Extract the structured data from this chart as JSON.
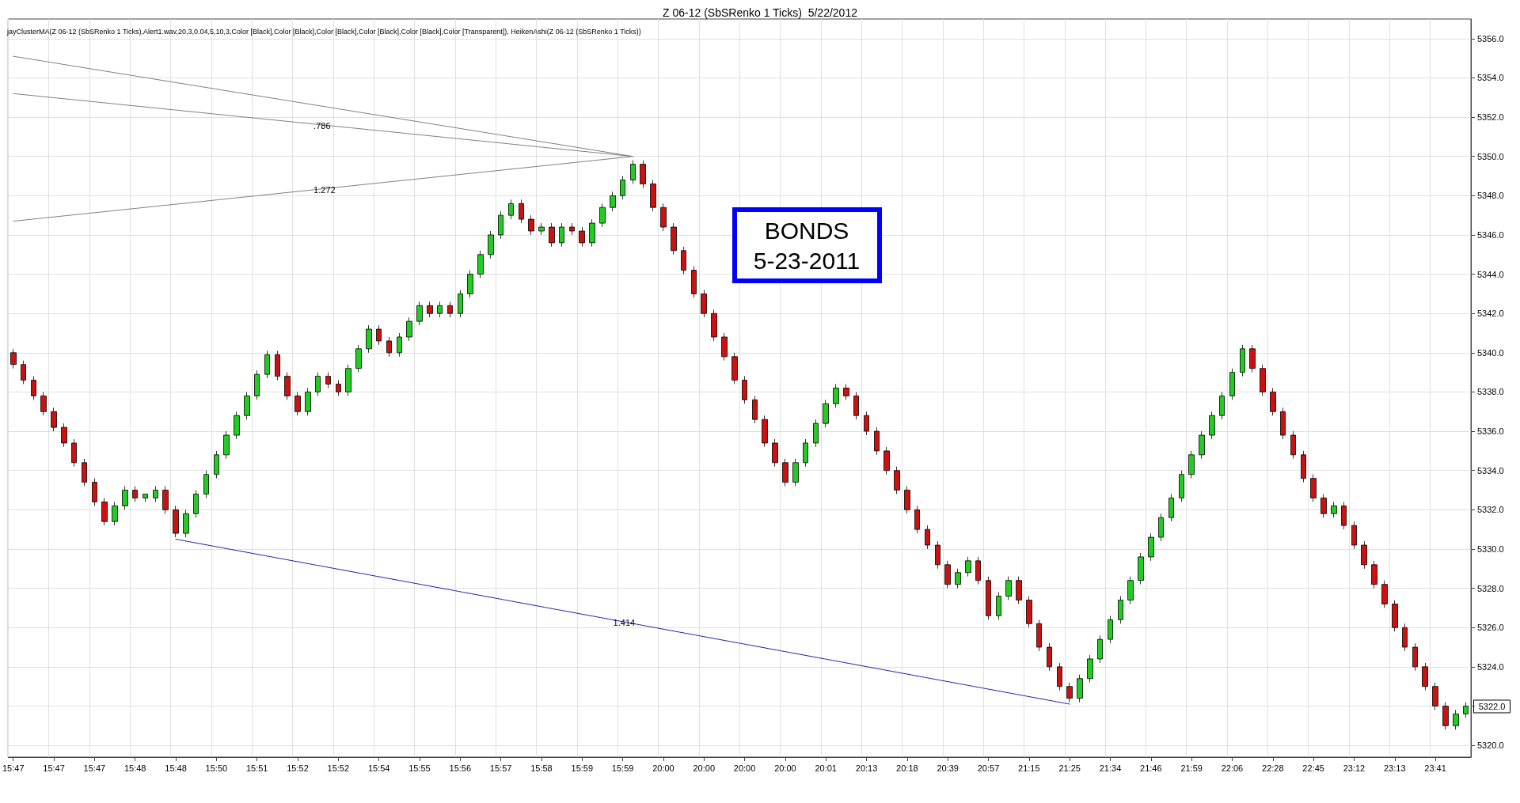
{
  "chart_data": {
    "type": "candlestick",
    "title": "Z 06-12 (SbSRenko 1 Ticks)  5/22/2012",
    "subtitle": "jayClusterMA(Z 06-12 (SbSRenko 1 Ticks),Alert1.wav,20,3,0.04,5,10,3,Color [Black],Color [Black],Color [Black],Color [Black],Color [Black],Color [Transparent]), HeikenAshi(Z 06-12 (SbSRenko 1 Ticks))",
    "annotations": [
      "BONDS\n5-23-2011",
      "5322.0"
    ],
    "categories": [
      "15:47",
      null,
      null,
      null,
      "15:47",
      null,
      null,
      null,
      "15:47",
      null,
      null,
      null,
      "15:48",
      null,
      null,
      null,
      "15:48",
      null,
      null,
      null,
      "15:50",
      null,
      null,
      null,
      "15:51",
      null,
      null,
      null,
      "15:52",
      null,
      null,
      null,
      "15:52",
      null,
      null,
      null,
      "15:54",
      null,
      null,
      null,
      "15:55",
      null,
      null,
      null,
      "15:56",
      null,
      null,
      null,
      "15:57",
      null,
      null,
      null,
      "15:58",
      null,
      null,
      null,
      "15:59",
      null,
      null,
      null,
      "15:59",
      null,
      null,
      null,
      "20:00",
      null,
      null,
      null,
      "20:00",
      null,
      null,
      null,
      "20:00",
      null,
      null,
      null,
      "20:00",
      null,
      null,
      null,
      "20:01",
      null,
      null,
      null,
      "20:13",
      null,
      null,
      null,
      "20:18",
      null,
      null,
      null,
      "20:39",
      null,
      null,
      null,
      "20:57",
      null,
      null,
      null,
      "21:15",
      null,
      null,
      null,
      "21:25",
      null,
      null,
      null,
      "21:34",
      null,
      null,
      null,
      "21:46",
      null,
      null,
      null,
      "21:59",
      null,
      null,
      null,
      "22:06",
      null,
      null,
      null,
      "22:28",
      null,
      null,
      null,
      "22:45",
      null,
      null,
      null,
      "23:12",
      null,
      null,
      null,
      "23:13",
      null,
      null,
      null,
      "23:41",
      null,
      null,
      null
    ],
    "ylim": [
      5319.4,
      5357
    ],
    "yticks": [
      {
        "value": 5320,
        "label": "5320.0"
      },
      {
        "value": 5322,
        "label": null
      },
      {
        "value": 5324,
        "label": "5324.0"
      },
      {
        "value": 5326,
        "label": "5326.0"
      },
      {
        "value": 5328,
        "label": "5328.0"
      },
      {
        "value": 5330,
        "label": "5330.0"
      },
      {
        "value": 5332,
        "label": "5332.0"
      },
      {
        "value": 5334,
        "label": "5334.0"
      },
      {
        "value": 5336,
        "label": "5336.0"
      },
      {
        "value": 5338,
        "label": "5338.0"
      },
      {
        "value": 5340,
        "label": "5340.0"
      },
      {
        "value": 5342,
        "label": "5342.0"
      },
      {
        "value": 5344,
        "label": "5344.0"
      },
      {
        "value": 5346,
        "label": "5346.0"
      },
      {
        "value": 5348,
        "label": "5348.0"
      },
      {
        "value": 5350,
        "label": "5350.0"
      },
      {
        "value": 5352,
        "label": "5352.0"
      },
      {
        "value": 5354,
        "label": "5354.0"
      },
      {
        "value": 5356,
        "label": "5356.0"
      }
    ],
    "grid": true,
    "marker": "none",
    "series": [
      {
        "ohlc": [
          [
            5340.0,
            5340.2,
            5339.2,
            5339.4
          ],
          [
            5339.4,
            5339.6,
            5338.4,
            5338.6
          ],
          [
            5338.6,
            5338.8,
            5337.6,
            5337.8
          ],
          [
            5337.8,
            5338.0,
            5336.8,
            5337.0
          ],
          [
            5337.0,
            5337.2,
            5336.0,
            5336.2
          ],
          [
            5336.2,
            5336.4,
            5335.2,
            5335.4
          ],
          [
            5335.4,
            5335.6,
            5334.2,
            5334.4
          ],
          [
            5334.4,
            5334.6,
            5333.2,
            5333.4
          ],
          [
            5333.4,
            5333.6,
            5332.2,
            5332.4
          ],
          [
            5332.4,
            5332.6,
            5331.2,
            5331.4
          ],
          [
            5331.4,
            5332.4,
            5331.2,
            5332.2
          ],
          [
            5332.2,
            5333.2,
            5332.0,
            5333.0
          ],
          [
            5333.0,
            5333.2,
            5332.4,
            5332.6
          ],
          [
            5332.6,
            5332.8,
            5332.4,
            5332.8
          ],
          [
            5332.6,
            5333.2,
            5332.4,
            5333.0
          ],
          [
            5333.0,
            5333.2,
            5331.8,
            5332.0
          ],
          [
            5332.0,
            5332.2,
            5330.6,
            5330.8
          ],
          [
            5330.8,
            5332.0,
            5330.6,
            5331.8
          ],
          [
            5331.8,
            5333.0,
            5331.6,
            5332.8
          ],
          [
            5332.8,
            5334.0,
            5332.6,
            5333.8
          ],
          [
            5333.8,
            5335.0,
            5333.6,
            5334.8
          ],
          [
            5334.8,
            5336.0,
            5334.6,
            5335.8
          ],
          [
            5335.8,
            5337.0,
            5335.6,
            5336.8
          ],
          [
            5336.8,
            5338.0,
            5336.6,
            5337.8
          ],
          [
            5337.8,
            5339.1,
            5337.6,
            5338.9
          ],
          [
            5338.9,
            5340.1,
            5338.7,
            5339.9
          ],
          [
            5339.9,
            5340.1,
            5338.6,
            5338.8
          ],
          [
            5338.8,
            5339.0,
            5337.6,
            5337.8
          ],
          [
            5337.8,
            5338.0,
            5336.8,
            5337.0
          ],
          [
            5337.0,
            5338.2,
            5336.8,
            5338.0
          ],
          [
            5338.0,
            5339.0,
            5337.8,
            5338.8
          ],
          [
            5338.8,
            5339.0,
            5338.2,
            5338.4
          ],
          [
            5338.4,
            5338.6,
            5337.8,
            5338.0
          ],
          [
            5338.0,
            5339.4,
            5337.8,
            5339.2
          ],
          [
            5339.2,
            5340.4,
            5339.0,
            5340.2
          ],
          [
            5340.2,
            5341.4,
            5340.0,
            5341.2
          ],
          [
            5341.2,
            5341.4,
            5340.4,
            5340.6
          ],
          [
            5340.6,
            5340.8,
            5339.8,
            5340.0
          ],
          [
            5340.0,
            5341.0,
            5339.8,
            5340.8
          ],
          [
            5340.8,
            5341.8,
            5340.6,
            5341.6
          ],
          [
            5341.6,
            5342.6,
            5341.4,
            5342.4
          ],
          [
            5342.4,
            5342.6,
            5341.8,
            5342.0
          ],
          [
            5342.0,
            5342.6,
            5341.8,
            5342.4
          ],
          [
            5342.4,
            5342.6,
            5341.8,
            5342.0
          ],
          [
            5342.0,
            5343.2,
            5341.8,
            5343.0
          ],
          [
            5343.0,
            5344.2,
            5342.8,
            5344.0
          ],
          [
            5344.0,
            5345.2,
            5343.8,
            5345.0
          ],
          [
            5345.0,
            5346.2,
            5344.8,
            5346.0
          ],
          [
            5346.0,
            5347.2,
            5345.8,
            5347.0
          ],
          [
            5347.0,
            5347.8,
            5346.8,
            5347.6
          ],
          [
            5347.6,
            5347.8,
            5346.6,
            5346.8
          ],
          [
            5346.8,
            5347.0,
            5346.0,
            5346.2
          ],
          [
            5346.2,
            5346.6,
            5346.0,
            5346.4
          ],
          [
            5346.4,
            5346.6,
            5345.4,
            5345.6
          ],
          [
            5345.6,
            5346.6,
            5345.4,
            5346.4
          ],
          [
            5346.4,
            5346.6,
            5346.0,
            5346.2
          ],
          [
            5346.2,
            5346.4,
            5345.4,
            5345.6
          ],
          [
            5345.6,
            5346.8,
            5345.4,
            5346.6
          ],
          [
            5346.6,
            5347.6,
            5346.4,
            5347.4
          ],
          [
            5347.4,
            5348.2,
            5347.2,
            5348.0
          ],
          [
            5348.0,
            5349.0,
            5347.8,
            5348.8
          ],
          [
            5348.8,
            5349.8,
            5348.6,
            5349.6
          ],
          [
            5349.6,
            5349.8,
            5348.4,
            5348.6
          ],
          [
            5348.6,
            5348.8,
            5347.2,
            5347.4
          ],
          [
            5347.4,
            5347.6,
            5346.2,
            5346.4
          ],
          [
            5346.4,
            5346.6,
            5345.0,
            5345.2
          ],
          [
            5345.2,
            5345.4,
            5344.0,
            5344.2
          ],
          [
            5344.2,
            5344.4,
            5342.8,
            5343.0
          ],
          [
            5343.0,
            5343.2,
            5341.8,
            5342.0
          ],
          [
            5342.0,
            5342.2,
            5340.6,
            5340.8
          ],
          [
            5340.8,
            5341.0,
            5339.6,
            5339.8
          ],
          [
            5339.8,
            5340.0,
            5338.4,
            5338.6
          ],
          [
            5338.6,
            5338.8,
            5337.4,
            5337.6
          ],
          [
            5337.6,
            5337.8,
            5336.4,
            5336.6
          ],
          [
            5336.6,
            5336.8,
            5335.2,
            5335.4
          ],
          [
            5335.4,
            5335.6,
            5334.2,
            5334.4
          ],
          [
            5334.4,
            5334.6,
            5333.2,
            5333.4
          ],
          [
            5333.4,
            5334.6,
            5333.2,
            5334.4
          ],
          [
            5334.4,
            5335.6,
            5334.2,
            5335.4
          ],
          [
            5335.4,
            5336.6,
            5335.2,
            5336.4
          ],
          [
            5336.4,
            5337.6,
            5336.2,
            5337.4
          ],
          [
            5337.4,
            5338.4,
            5337.2,
            5338.2
          ],
          [
            5338.2,
            5338.4,
            5337.6,
            5337.8
          ],
          [
            5337.8,
            5338.0,
            5336.6,
            5336.8
          ],
          [
            5336.8,
            5337.0,
            5335.8,
            5336.0
          ],
          [
            5336.0,
            5336.2,
            5334.8,
            5335.0
          ],
          [
            5335.0,
            5335.2,
            5333.8,
            5334.0
          ],
          [
            5334.0,
            5334.2,
            5332.8,
            5333.0
          ],
          [
            5333.0,
            5333.2,
            5331.8,
            5332.0
          ],
          [
            5332.0,
            5332.2,
            5330.8,
            5331.0
          ],
          [
            5331.0,
            5331.2,
            5330.0,
            5330.2
          ],
          [
            5330.2,
            5330.4,
            5329.0,
            5329.2
          ],
          [
            5329.2,
            5329.4,
            5328.0,
            5328.2
          ],
          [
            5328.2,
            5329.0,
            5328.0,
            5328.8
          ],
          [
            5328.8,
            5329.6,
            5328.6,
            5329.4
          ],
          [
            5329.4,
            5329.6,
            5328.2,
            5328.4
          ],
          [
            5328.4,
            5328.6,
            5326.4,
            5326.6
          ],
          [
            5326.6,
            5327.8,
            5326.4,
            5327.6
          ],
          [
            5327.6,
            5328.6,
            5327.4,
            5328.4
          ],
          [
            5328.4,
            5328.6,
            5327.2,
            5327.4
          ],
          [
            5327.4,
            5327.6,
            5326.0,
            5326.2
          ],
          [
            5326.2,
            5326.4,
            5324.8,
            5325.0
          ],
          [
            5325.0,
            5325.2,
            5323.8,
            5324.0
          ],
          [
            5324.0,
            5324.2,
            5322.8,
            5323.0
          ],
          [
            5323.0,
            5323.2,
            5322.2,
            5322.4
          ],
          [
            5322.4,
            5323.6,
            5322.2,
            5323.4
          ],
          [
            5323.4,
            5324.6,
            5323.2,
            5324.4
          ],
          [
            5324.4,
            5325.6,
            5324.2,
            5325.4
          ],
          [
            5325.4,
            5326.6,
            5325.2,
            5326.4
          ],
          [
            5326.4,
            5327.6,
            5326.2,
            5327.4
          ],
          [
            5327.4,
            5328.6,
            5327.2,
            5328.4
          ],
          [
            5328.4,
            5329.8,
            5328.2,
            5329.6
          ],
          [
            5329.6,
            5330.8,
            5329.4,
            5330.6
          ],
          [
            5330.6,
            5331.8,
            5330.4,
            5331.6
          ],
          [
            5331.6,
            5332.8,
            5331.4,
            5332.6
          ],
          [
            5332.6,
            5334.0,
            5332.4,
            5333.8
          ],
          [
            5333.8,
            5335.0,
            5333.6,
            5334.8
          ],
          [
            5334.8,
            5336.0,
            5334.6,
            5335.8
          ],
          [
            5335.8,
            5337.0,
            5335.6,
            5336.8
          ],
          [
            5336.8,
            5338.0,
            5336.6,
            5337.8
          ],
          [
            5337.8,
            5339.2,
            5337.6,
            5339.0
          ],
          [
            5339.0,
            5340.4,
            5338.8,
            5340.2
          ],
          [
            5340.2,
            5340.4,
            5339.0,
            5339.2
          ],
          [
            5339.2,
            5339.4,
            5337.8,
            5338.0
          ],
          [
            5338.0,
            5338.2,
            5336.8,
            5337.0
          ],
          [
            5337.0,
            5337.2,
            5335.6,
            5335.8
          ],
          [
            5335.8,
            5336.0,
            5334.6,
            5334.8
          ],
          [
            5334.8,
            5335.0,
            5333.4,
            5333.6
          ],
          [
            5333.6,
            5333.8,
            5332.4,
            5332.6
          ],
          [
            5332.6,
            5332.8,
            5331.6,
            5331.8
          ],
          [
            5331.8,
            5332.4,
            5331.6,
            5332.2
          ],
          [
            5332.2,
            5332.4,
            5331.0,
            5331.2
          ],
          [
            5331.2,
            5331.4,
            5330.0,
            5330.2
          ],
          [
            5330.2,
            5330.4,
            5329.0,
            5329.2
          ],
          [
            5329.2,
            5329.4,
            5328.0,
            5328.2
          ],
          [
            5328.2,
            5328.4,
            5327.0,
            5327.2
          ],
          [
            5327.2,
            5327.4,
            5325.8,
            5326.0
          ],
          [
            5326.0,
            5326.2,
            5324.8,
            5325.0
          ],
          [
            5325.0,
            5325.2,
            5323.8,
            5324.0
          ],
          [
            5324.0,
            5324.2,
            5322.8,
            5323.0
          ],
          [
            5323.0,
            5323.2,
            5321.8,
            5322.0
          ],
          [
            5322.0,
            5322.2,
            5320.8,
            5321.0
          ],
          [
            5321.0,
            5321.8,
            5320.8,
            5321.6
          ],
          [
            5321.6,
            5322.2,
            5321.4,
            5322.0
          ]
        ]
      },
      {
        "type": "line",
        "color": "#808080",
        "line_style": "solid",
        "values": [
          5355.1,
          null,
          null,
          null,
          null,
          null,
          null,
          null,
          null,
          null,
          null,
          null,
          null,
          null,
          null,
          null,
          null,
          null,
          null,
          null,
          null,
          null,
          null,
          null,
          null,
          null,
          null,
          null,
          null,
          null,
          null,
          null,
          null,
          null,
          null,
          null,
          null,
          null,
          null,
          null,
          null,
          null,
          null,
          null,
          null,
          null,
          null,
          null,
          null,
          null,
          null,
          null,
          null,
          null,
          null,
          null,
          null,
          null,
          null,
          null,
          null,
          5350.0,
          null,
          null,
          null,
          null,
          null,
          null,
          null,
          null,
          null,
          null,
          null,
          null,
          null,
          null,
          null,
          null,
          null,
          null,
          null,
          null,
          null,
          null,
          null,
          null,
          null,
          null,
          null,
          null,
          null,
          null,
          null,
          null,
          null,
          null,
          null,
          null,
          null,
          null,
          null,
          null,
          null,
          null,
          null,
          null,
          null,
          null,
          null,
          null,
          null,
          null,
          null,
          null,
          null,
          null,
          null,
          null,
          null,
          null,
          null,
          null,
          null,
          null,
          null,
          null,
          null,
          null,
          null,
          null,
          null,
          null,
          null,
          null,
          null,
          null,
          null,
          null,
          null,
          null,
          null,
          null,
          null,
          null
        ]
      },
      {
        "type": "line",
        "name": ".786",
        "color": "#808080",
        "line_style": "solid",
        "values": [
          5353.2,
          null,
          null,
          null,
          null,
          null,
          null,
          null,
          null,
          null,
          null,
          null,
          null,
          null,
          null,
          null,
          null,
          null,
          null,
          null,
          null,
          null,
          null,
          null,
          null,
          null,
          null,
          null,
          null,
          null,
          null,
          null,
          null,
          null,
          null,
          null,
          null,
          null,
          null,
          null,
          null,
          null,
          null,
          null,
          null,
          null,
          null,
          null,
          null,
          null,
          null,
          null,
          null,
          null,
          null,
          null,
          null,
          null,
          null,
          null,
          null,
          5350.0,
          null,
          null,
          null,
          null,
          null,
          null,
          null,
          null,
          null,
          null,
          null,
          null,
          null,
          null,
          null,
          null,
          null,
          null,
          null,
          null,
          null,
          null,
          null,
          null,
          null,
          null,
          null,
          null,
          null,
          null,
          null,
          null,
          null,
          null,
          null,
          null,
          null,
          null,
          null,
          null,
          null,
          null,
          null,
          null,
          null,
          null,
          null,
          null,
          null,
          null,
          null,
          null,
          null,
          null,
          null,
          null,
          null,
          null,
          null,
          null,
          null,
          null,
          null,
          null,
          null,
          null,
          null,
          null,
          null,
          null,
          null,
          null,
          null,
          null,
          null,
          null,
          null,
          null,
          null,
          null,
          null,
          null
        ]
      },
      {
        "type": "line",
        "name": "1.272",
        "color": "#808080",
        "line_style": "solid",
        "values": [
          5346.7,
          null,
          null,
          null,
          null,
          null,
          null,
          null,
          null,
          null,
          null,
          null,
          null,
          null,
          null,
          null,
          null,
          null,
          null,
          null,
          null,
          null,
          null,
          null,
          null,
          null,
          null,
          null,
          null,
          null,
          null,
          null,
          null,
          null,
          null,
          null,
          null,
          null,
          null,
          null,
          null,
          null,
          null,
          null,
          null,
          null,
          null,
          null,
          null,
          null,
          null,
          null,
          null,
          null,
          null,
          null,
          null,
          null,
          null,
          null,
          null,
          5350.0,
          null,
          null,
          null,
          null,
          null,
          null,
          null,
          null,
          null,
          null,
          null,
          null,
          null,
          null,
          null,
          null,
          null,
          null,
          null,
          null,
          null,
          null,
          null,
          null,
          null,
          null,
          null,
          null,
          null,
          null,
          null,
          null,
          null,
          null,
          null,
          null,
          null,
          null,
          null,
          null,
          null,
          null,
          null,
          null,
          null,
          null,
          null,
          null,
          null,
          null,
          null,
          null,
          null,
          null,
          null,
          null,
          null,
          null,
          null,
          null,
          null,
          null,
          null,
          null,
          null,
          null,
          null,
          null,
          null,
          null,
          null,
          null,
          null,
          null,
          null,
          null,
          null,
          null,
          null,
          null,
          null,
          null
        ]
      },
      {
        "type": "line",
        "name": "1.414",
        "color": "#0000a0",
        "line_style": "dotted",
        "values": [
          null,
          null,
          null,
          null,
          null,
          null,
          null,
          null,
          null,
          null,
          null,
          null,
          null,
          null,
          null,
          null,
          5330.5,
          null,
          null,
          null,
          null,
          null,
          null,
          null,
          null,
          null,
          null,
          null,
          null,
          null,
          null,
          null,
          null,
          null,
          null,
          null,
          null,
          null,
          null,
          null,
          null,
          null,
          null,
          null,
          null,
          null,
          null,
          null,
          null,
          null,
          null,
          null,
          null,
          null,
          null,
          null,
          null,
          null,
          null,
          null,
          null,
          null,
          null,
          null,
          null,
          null,
          null,
          null,
          null,
          null,
          null,
          null,
          null,
          null,
          null,
          null,
          null,
          null,
          null,
          null,
          null,
          null,
          null,
          null,
          null,
          null,
          null,
          null,
          null,
          null,
          null,
          null,
          null,
          null,
          null,
          null,
          null,
          null,
          null,
          null,
          null,
          null,
          null,
          null,
          5322.1,
          null,
          null,
          null,
          null,
          null,
          null,
          null,
          null,
          null,
          null,
          null,
          null,
          null,
          null,
          null,
          null,
          null,
          null,
          null,
          null,
          null,
          null,
          null,
          null,
          null,
          null,
          null,
          null,
          null,
          null,
          null,
          null,
          null,
          null,
          null,
          null,
          null,
          null,
          null
        ]
      }
    ]
  }
}
